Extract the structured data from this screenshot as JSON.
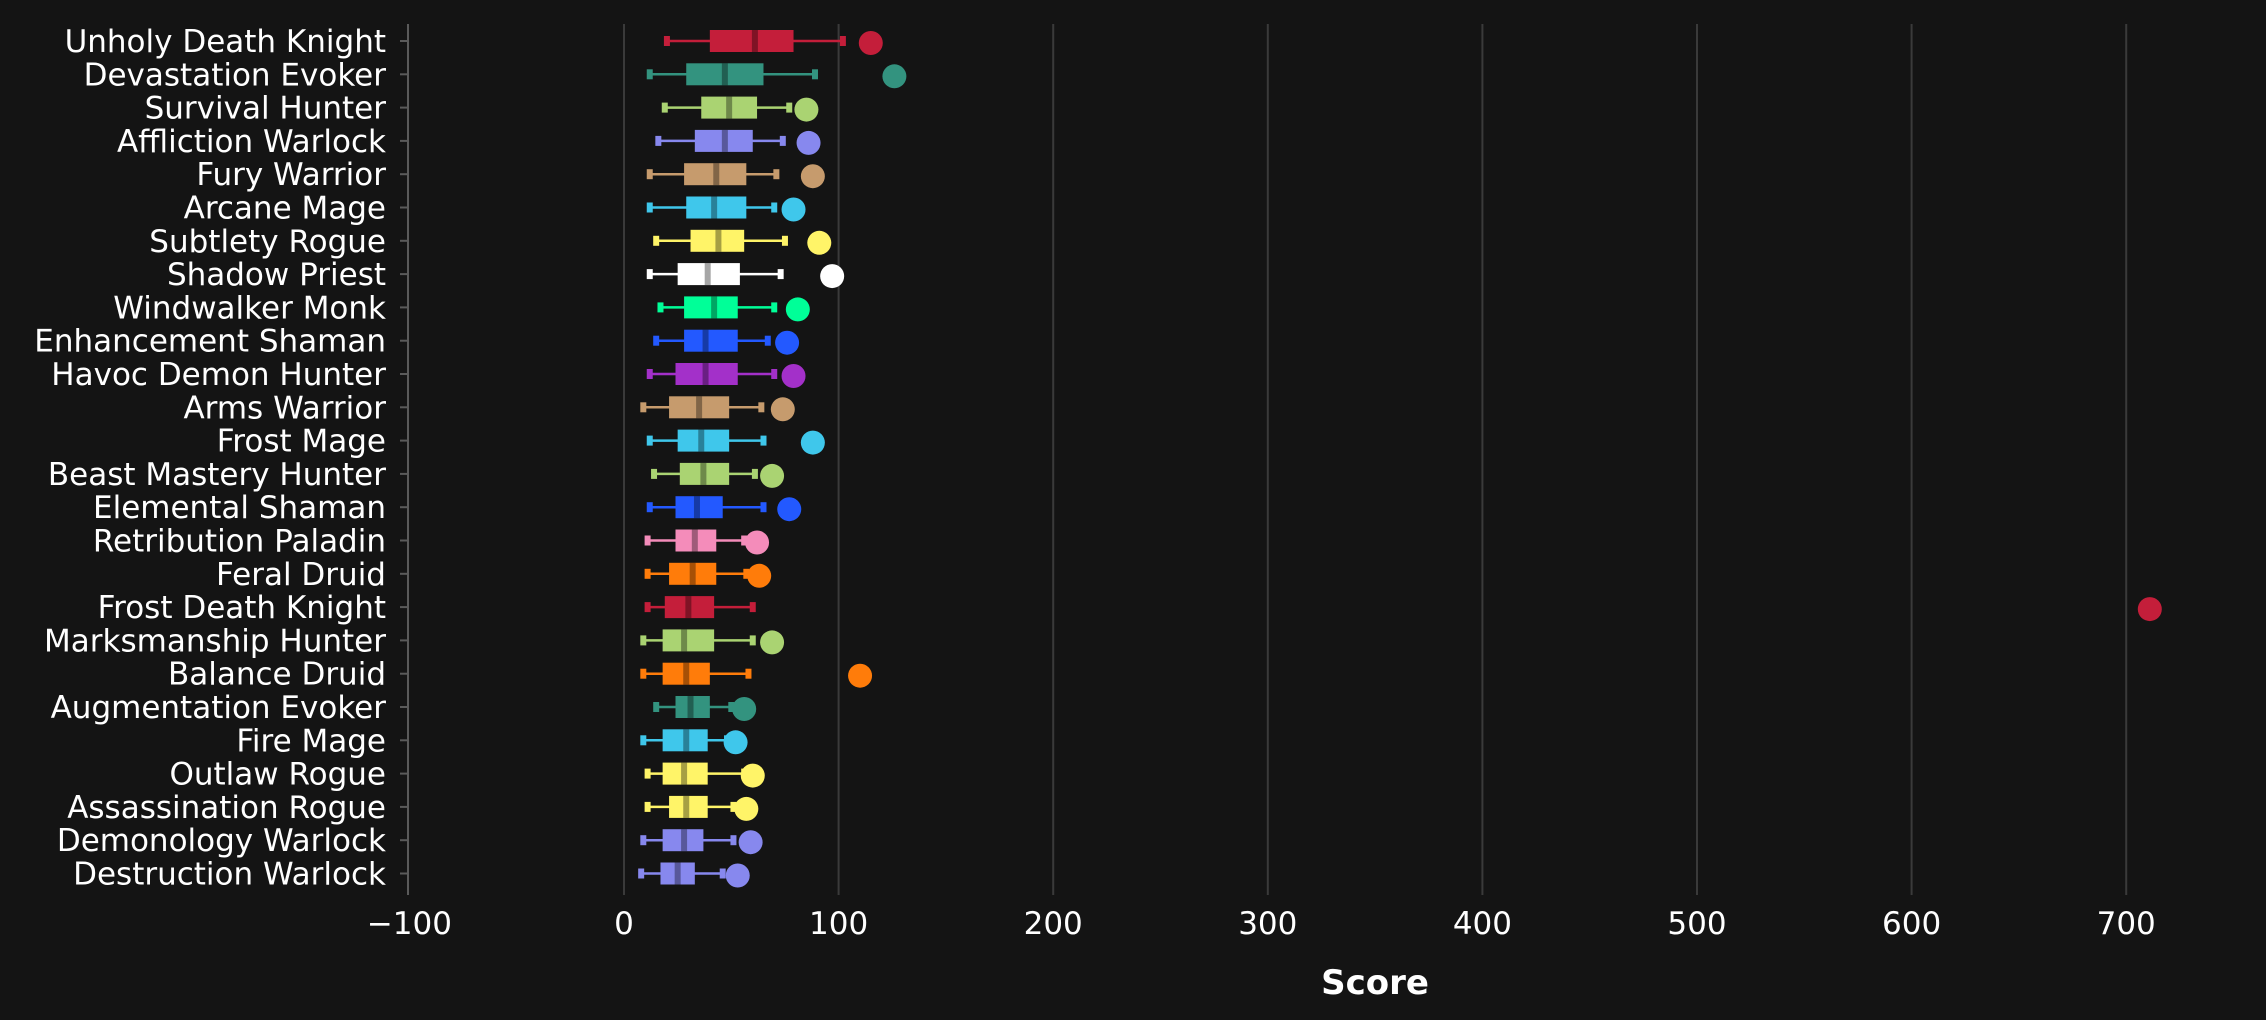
{
  "chart_data": {
    "type": "boxplot",
    "xlabel": "Score",
    "xlim": [
      -100,
      750
    ],
    "xticks": [
      -100,
      0,
      100,
      200,
      300,
      400,
      500,
      600,
      700
    ],
    "xtick_labels": [
      "−100",
      "0",
      "100",
      "200",
      "300",
      "400",
      "500",
      "600",
      "700"
    ],
    "grid": "vertical",
    "series": [
      {
        "name": "Unholy Death Knight",
        "color": "#C41E3A",
        "whisker_low": 20,
        "q1": 40,
        "median": 61,
        "q3": 79,
        "whisker_high": 102,
        "point": 115
      },
      {
        "name": "Devastation Evoker",
        "color": "#33937F",
        "whisker_low": 12,
        "q1": 29,
        "median": 47,
        "q3": 65,
        "whisker_high": 89,
        "point": 126
      },
      {
        "name": "Survival Hunter",
        "color": "#AAD372",
        "whisker_low": 19,
        "q1": 36,
        "median": 49,
        "q3": 62,
        "whisker_high": 77,
        "point": 85
      },
      {
        "name": "Affliction Warlock",
        "color": "#8788EE",
        "whisker_low": 16,
        "q1": 33,
        "median": 47,
        "q3": 60,
        "whisker_high": 74,
        "point": 86
      },
      {
        "name": "Fury Warrior",
        "color": "#C69B6D",
        "whisker_low": 12,
        "q1": 28,
        "median": 43,
        "q3": 57,
        "whisker_high": 71,
        "point": 88
      },
      {
        "name": "Arcane Mage",
        "color": "#3FC7EB",
        "whisker_low": 12,
        "q1": 29,
        "median": 42,
        "q3": 57,
        "whisker_high": 70,
        "point": 79
      },
      {
        "name": "Subtlety Rogue",
        "color": "#FFF468",
        "whisker_low": 15,
        "q1": 31,
        "median": 44,
        "q3": 56,
        "whisker_high": 75,
        "point": 91
      },
      {
        "name": "Shadow Priest",
        "color": "#FFFFFF",
        "whisker_low": 12,
        "q1": 25,
        "median": 39,
        "q3": 54,
        "whisker_high": 73,
        "point": 97
      },
      {
        "name": "Windwalker Monk",
        "color": "#00FF98",
        "whisker_low": 17,
        "q1": 28,
        "median": 42,
        "q3": 53,
        "whisker_high": 70,
        "point": 81
      },
      {
        "name": "Enhancement Shaman",
        "color": "#2359FF",
        "whisker_low": 15,
        "q1": 28,
        "median": 38,
        "q3": 53,
        "whisker_high": 67,
        "point": 76
      },
      {
        "name": "Havoc Demon Hunter",
        "color": "#A330C9",
        "whisker_low": 12,
        "q1": 24,
        "median": 38,
        "q3": 53,
        "whisker_high": 70,
        "point": 79
      },
      {
        "name": "Arms Warrior",
        "color": "#C69B6D",
        "whisker_low": 9,
        "q1": 21,
        "median": 35,
        "q3": 49,
        "whisker_high": 64,
        "point": 74
      },
      {
        "name": "Frost Mage",
        "color": "#3FC7EB",
        "whisker_low": 12,
        "q1": 25,
        "median": 36,
        "q3": 49,
        "whisker_high": 65,
        "point": 88
      },
      {
        "name": "Beast Mastery Hunter",
        "color": "#AAD372",
        "whisker_low": 14,
        "q1": 26,
        "median": 37,
        "q3": 49,
        "whisker_high": 61,
        "point": 69
      },
      {
        "name": "Elemental Shaman",
        "color": "#2359FF",
        "whisker_low": 12,
        "q1": 24,
        "median": 34,
        "q3": 46,
        "whisker_high": 65,
        "point": 77
      },
      {
        "name": "Retribution Paladin",
        "color": "#F48CBA",
        "whisker_low": 11,
        "q1": 24,
        "median": 33,
        "q3": 43,
        "whisker_high": 56,
        "point": 62
      },
      {
        "name": "Feral Druid",
        "color": "#FF7C0A",
        "whisker_low": 11,
        "q1": 21,
        "median": 32,
        "q3": 43,
        "whisker_high": 57,
        "point": 63
      },
      {
        "name": "Frost Death Knight",
        "color": "#C41E3A",
        "whisker_low": 11,
        "q1": 19,
        "median": 30,
        "q3": 42,
        "whisker_high": 60,
        "point": 711
      },
      {
        "name": "Marksmanship Hunter",
        "color": "#AAD372",
        "whisker_low": 9,
        "q1": 18,
        "median": 28,
        "q3": 42,
        "whisker_high": 60,
        "point": 69
      },
      {
        "name": "Balance Druid",
        "color": "#FF7C0A",
        "whisker_low": 9,
        "q1": 18,
        "median": 29,
        "q3": 40,
        "whisker_high": 58,
        "point": 110
      },
      {
        "name": "Augmentation Evoker",
        "color": "#33937F",
        "whisker_low": 15,
        "q1": 24,
        "median": 31,
        "q3": 40,
        "whisker_high": 50,
        "point": 56
      },
      {
        "name": "Fire Mage",
        "color": "#3FC7EB",
        "whisker_low": 9,
        "q1": 18,
        "median": 29,
        "q3": 39,
        "whisker_high": 48,
        "point": 52
      },
      {
        "name": "Outlaw Rogue",
        "color": "#FFF468",
        "whisker_low": 11,
        "q1": 18,
        "median": 28,
        "q3": 39,
        "whisker_high": 56,
        "point": 60
      },
      {
        "name": "Assassination Rogue",
        "color": "#FFF468",
        "whisker_low": 11,
        "q1": 21,
        "median": 29,
        "q3": 39,
        "whisker_high": 51,
        "point": 57
      },
      {
        "name": "Demonology Warlock",
        "color": "#8788EE",
        "whisker_low": 9,
        "q1": 18,
        "median": 28,
        "q3": 37,
        "whisker_high": 51,
        "point": 59
      },
      {
        "name": "Destruction Warlock",
        "color": "#8788EE",
        "whisker_low": 8,
        "q1": 17,
        "median": 25,
        "q3": 33,
        "whisker_high": 46,
        "point": 53
      }
    ]
  }
}
